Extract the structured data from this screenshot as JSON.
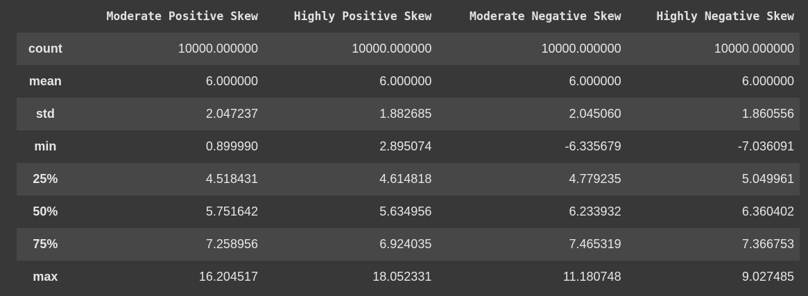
{
  "table": {
    "columns": [
      "Moderate Positive Skew",
      "Highly Positive Skew",
      "Moderate Negative Skew",
      "Highly Negative Skew"
    ],
    "rows": [
      {
        "label": "count",
        "values": [
          "10000.000000",
          "10000.000000",
          "10000.000000",
          "10000.000000"
        ]
      },
      {
        "label": "mean",
        "values": [
          "6.000000",
          "6.000000",
          "6.000000",
          "6.000000"
        ]
      },
      {
        "label": "std",
        "values": [
          "2.047237",
          "1.882685",
          "2.045060",
          "1.860556"
        ]
      },
      {
        "label": "min",
        "values": [
          "0.899990",
          "2.895074",
          "-6.335679",
          "-7.036091"
        ]
      },
      {
        "label": "25%",
        "values": [
          "4.518431",
          "4.614818",
          "4.779235",
          "5.049961"
        ]
      },
      {
        "label": "50%",
        "values": [
          "5.751642",
          "5.634956",
          "6.233932",
          "6.360402"
        ]
      },
      {
        "label": "75%",
        "values": [
          "7.258956",
          "6.924035",
          "7.465319",
          "7.366753"
        ]
      },
      {
        "label": "max",
        "values": [
          "16.204517",
          "18.052331",
          "11.180748",
          "9.027485"
        ]
      }
    ]
  },
  "colors": {
    "background": "#383838",
    "row_stripe": "#474747",
    "text": "#e6e6e6"
  }
}
